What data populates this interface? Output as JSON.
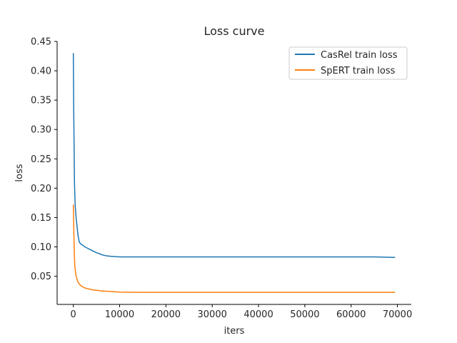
{
  "chart_data": {
    "type": "line",
    "title": "Loss curve",
    "xlabel": "iters",
    "ylabel": "loss",
    "xlim": [
      -3500,
      73000
    ],
    "ylim": [
      0.002,
      0.45
    ],
    "xticks": [
      0,
      10000,
      20000,
      30000,
      40000,
      50000,
      60000,
      70000
    ],
    "yticks": [
      0.05,
      0.1,
      0.15,
      0.2,
      0.25,
      0.3,
      0.35,
      0.4,
      0.45
    ],
    "ytick_labels": [
      "0.05",
      "0.10",
      "0.15",
      "0.20",
      "0.25",
      "0.30",
      "0.35",
      "0.40",
      "0.45"
    ],
    "grid": false,
    "legend_position": "top-right",
    "series": [
      {
        "name": "CasRel train loss",
        "color": "#1f77b4",
        "x": [
          0,
          100,
          250,
          400,
          600,
          800,
          1000,
          1300,
          1600,
          2000,
          2500,
          3000,
          3500,
          4000,
          4500,
          5000,
          5500,
          6000,
          6500,
          7000,
          8000,
          10000,
          15000,
          20000,
          25000,
          30000,
          35000,
          40000,
          45000,
          50000,
          55000,
          60000,
          65000,
          69500
        ],
        "y": [
          0.43,
          0.32,
          0.21,
          0.17,
          0.15,
          0.135,
          0.12,
          0.108,
          0.105,
          0.103,
          0.1,
          0.098,
          0.096,
          0.094,
          0.092,
          0.09,
          0.089,
          0.087,
          0.086,
          0.085,
          0.084,
          0.083,
          0.083,
          0.083,
          0.083,
          0.083,
          0.083,
          0.083,
          0.083,
          0.083,
          0.083,
          0.083,
          0.083,
          0.082
        ]
      },
      {
        "name": "SpERT train loss",
        "color": "#ff7f0e",
        "x": [
          0,
          100,
          200,
          300,
          450,
          600,
          800,
          1000,
          1300,
          1600,
          2000,
          2500,
          3000,
          3500,
          4000,
          5000,
          6000,
          7000,
          8000,
          10000,
          15000,
          20000,
          25000,
          30000,
          35000,
          40000,
          45000,
          50000,
          55000,
          60000,
          65000,
          69500
        ],
        "y": [
          0.172,
          0.13,
          0.095,
          0.07,
          0.058,
          0.05,
          0.045,
          0.04,
          0.037,
          0.034,
          0.032,
          0.03,
          0.029,
          0.028,
          0.027,
          0.026,
          0.025,
          0.0245,
          0.024,
          0.023,
          0.0225,
          0.0225,
          0.0225,
          0.0225,
          0.0225,
          0.0225,
          0.0225,
          0.0225,
          0.0225,
          0.0225,
          0.0225,
          0.0225
        ]
      }
    ]
  }
}
